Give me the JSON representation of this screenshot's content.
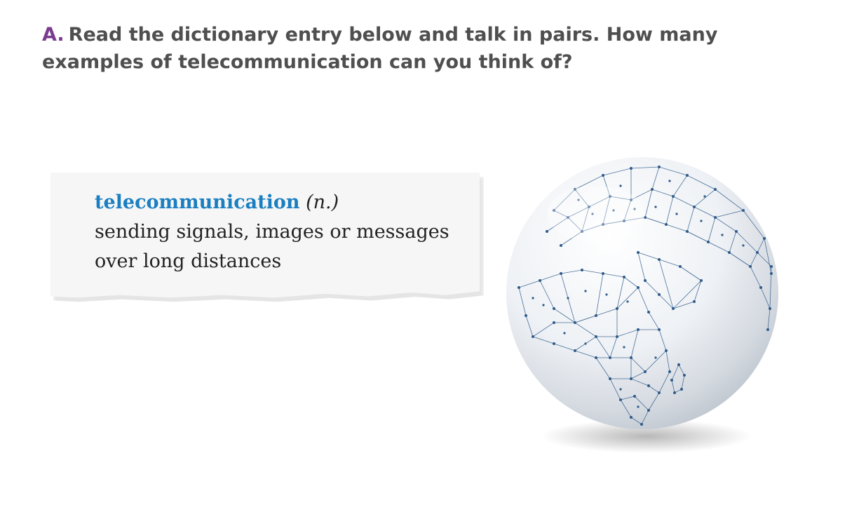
{
  "instruction": {
    "letter": "A.",
    "text": "Read the dictionary entry below and talk in pairs. How many examples of telecommunication can you think of?"
  },
  "entry": {
    "headword": "telecommunication",
    "part_of_speech": "(n.)",
    "definition_line1": "sending signals, images or messages",
    "definition_line2": "over long distances"
  },
  "colors": {
    "letter": "#7a3c8f",
    "instruction_text": "#4f4f4f",
    "headword": "#1a7fc1",
    "network": "#2f5a8a"
  },
  "globe": {
    "icon": "network-globe-illustration"
  }
}
